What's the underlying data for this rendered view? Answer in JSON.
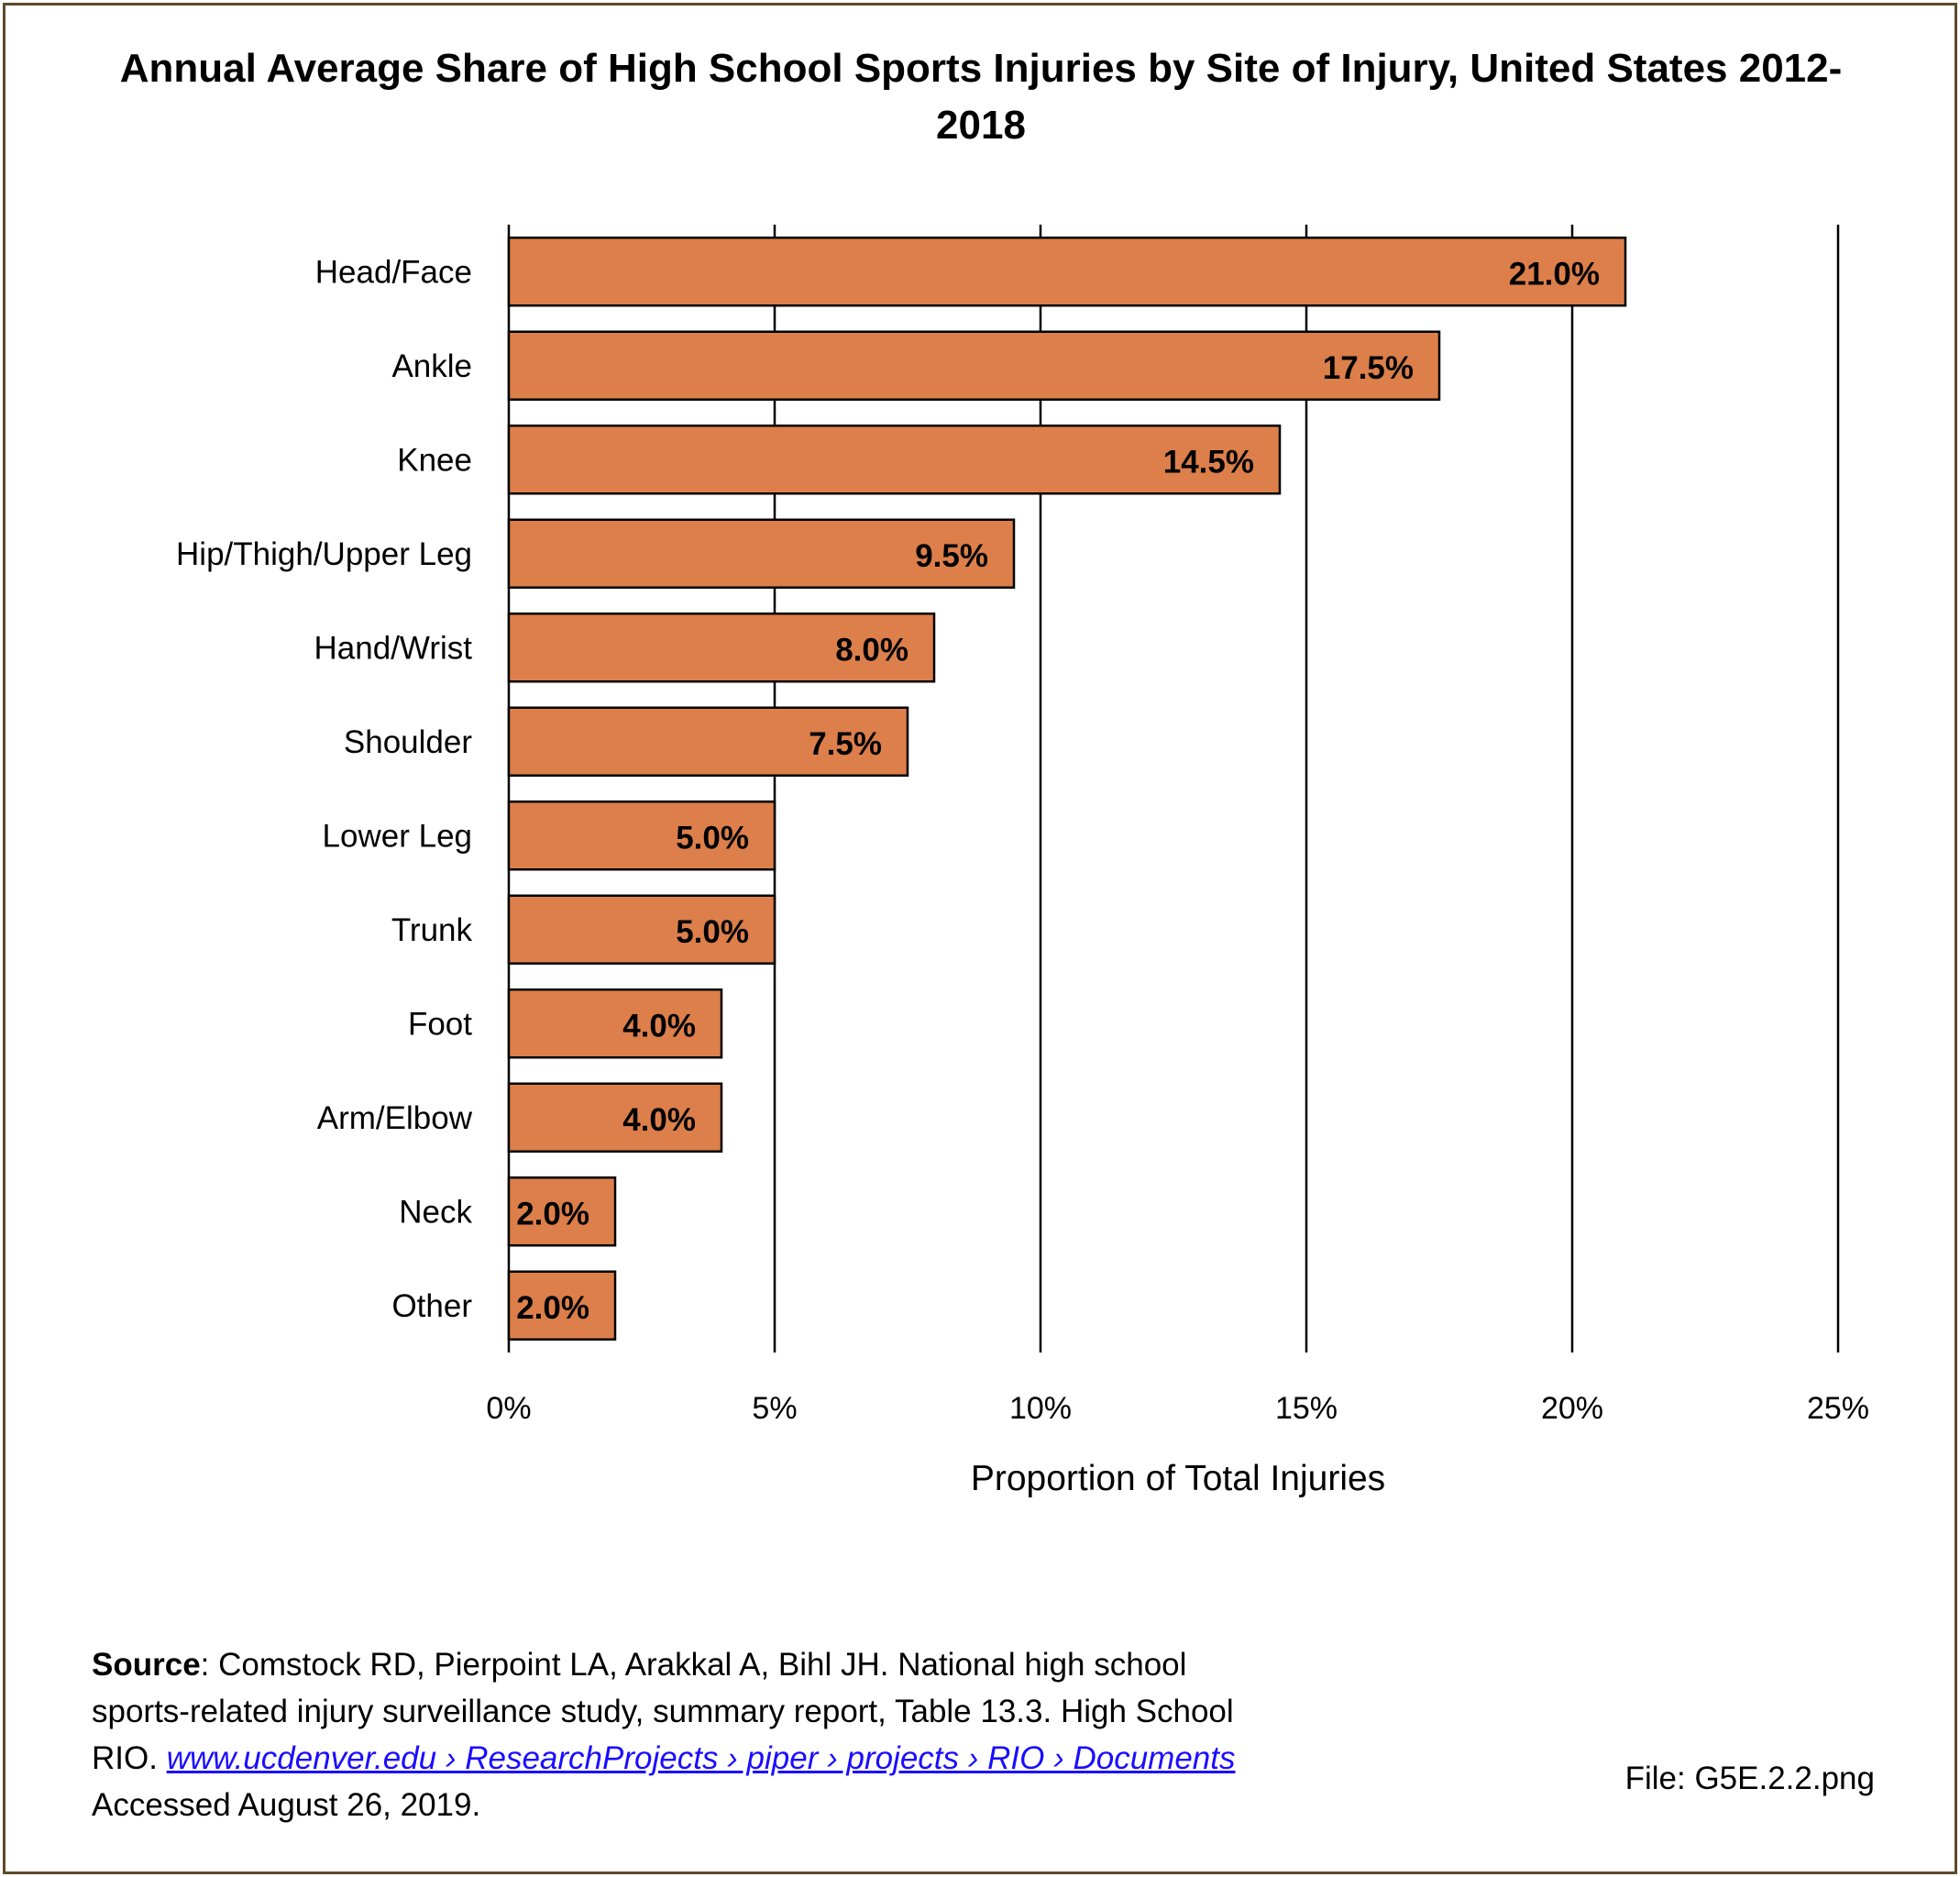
{
  "chart_data": {
    "type": "bar",
    "orientation": "horizontal",
    "title": "Annual Average Share of High School Sports Injuries by Site of Injury, United States 2012-2018",
    "xlabel": "Proportion of Total Injuries",
    "ylabel": "",
    "categories": [
      "Head/Face",
      "Ankle",
      "Knee",
      "Hip/Thigh/Upper Leg",
      "Hand/Wrist",
      "Shoulder",
      "Lower Leg",
      "Trunk",
      "Foot",
      "Arm/Elbow",
      "Neck",
      "Other"
    ],
    "values": [
      21.0,
      17.5,
      14.5,
      9.5,
      8.0,
      7.5,
      5.0,
      5.0,
      4.0,
      4.0,
      2.0,
      2.0
    ],
    "data_labels": [
      "21.0%",
      "17.5%",
      "14.5%",
      "9.5%",
      "8.0%",
      "7.5%",
      "5.0%",
      "5.0%",
      "4.0%",
      "4.0%",
      "2.0%",
      "2.0%"
    ],
    "xlim": [
      0,
      25
    ],
    "xticks": [
      0,
      5,
      10,
      15,
      20,
      25
    ],
    "xtick_labels": [
      "0%",
      "5%",
      "10%",
      "15%",
      "20%",
      "25%"
    ],
    "grid": "vertical",
    "legend": "none",
    "bar_color": "#dd7f4b",
    "bar_edge_color": "#000000"
  },
  "source": {
    "label": "Source",
    "text": ": Comstock RD, Pierpoint LA, Arakkal A, Bihl JH. National high school sports-related injury surveillance study, summary report, Table 13.3. High School RIO. ",
    "link_text": "www.ucdenver.edu › ResearchProjects › piper › projects › RIO › Documents ",
    "accessed": "Accessed August 26, 2019."
  },
  "file_label": "File: G5E.2.2.png",
  "colors": {
    "frame": "#5b4a2a",
    "link": "#1a0dff"
  }
}
